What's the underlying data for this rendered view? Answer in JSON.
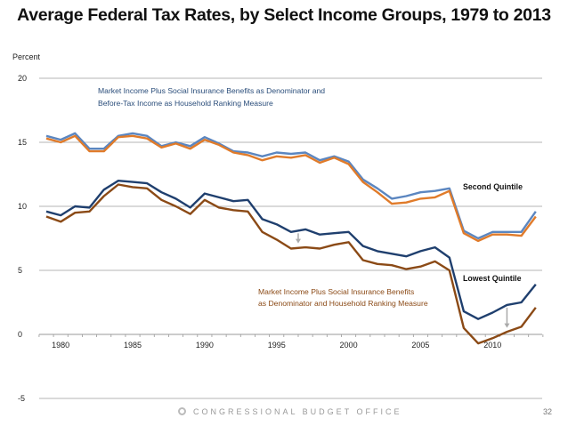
{
  "chart_data": {
    "type": "line",
    "title": "Average Federal Tax Rates, by Select Income Groups, 1979 to 2013",
    "ylabel": "Percent",
    "xlabel": "",
    "ylim": [
      -5,
      20
    ],
    "xlim": [
      1979,
      2013
    ],
    "yticks": [
      -5,
      0,
      5,
      10,
      15,
      20
    ],
    "xticks": [
      1980,
      1985,
      1990,
      1995,
      2000,
      2005,
      2010
    ],
    "grid": true,
    "x": [
      1979,
      1980,
      1981,
      1982,
      1983,
      1984,
      1985,
      1986,
      1987,
      1988,
      1989,
      1990,
      1991,
      1992,
      1993,
      1994,
      1995,
      1996,
      1997,
      1998,
      1999,
      2000,
      2001,
      2002,
      2003,
      2004,
      2005,
      2006,
      2007,
      2008,
      2009,
      2010,
      2011,
      2012,
      2013
    ],
    "series": [
      {
        "name": "Second Quintile - Market Income Plus Social Insurance Benefits as Denominator and Before-Tax Income as Household Ranking Measure",
        "color": "#5b86c0",
        "values": [
          15.5,
          15.2,
          15.7,
          14.5,
          14.5,
          15.5,
          15.7,
          15.5,
          14.7,
          15.0,
          14.7,
          15.4,
          14.9,
          14.3,
          14.2,
          13.9,
          14.2,
          14.1,
          14.2,
          13.6,
          13.9,
          13.5,
          12.1,
          11.4,
          10.6,
          10.8,
          11.1,
          11.2,
          11.4,
          8.1,
          7.5,
          8.0,
          8.0,
          8.0,
          9.6
        ]
      },
      {
        "name": "Second Quintile - Market Income Plus Social Insurance Benefits as Denominator and Household Ranking Measure",
        "color": "#e07b2a",
        "values": [
          15.3,
          15.0,
          15.5,
          14.3,
          14.3,
          15.4,
          15.5,
          15.3,
          14.6,
          14.9,
          14.5,
          15.2,
          14.8,
          14.2,
          14.0,
          13.6,
          13.9,
          13.8,
          14.0,
          13.4,
          13.8,
          13.3,
          11.9,
          11.1,
          10.2,
          10.3,
          10.6,
          10.7,
          11.2,
          7.9,
          7.3,
          7.8,
          7.8,
          7.7,
          9.2
        ]
      },
      {
        "name": "Lowest Quintile - Market Income Plus Social Insurance Benefits as Denominator and Before-Tax Income as Household Ranking Measure",
        "color": "#1f3f6e",
        "values": [
          9.6,
          9.3,
          10.0,
          9.9,
          11.3,
          12.0,
          11.9,
          11.8,
          11.1,
          10.6,
          9.9,
          11.0,
          10.7,
          10.4,
          10.5,
          9.0,
          8.6,
          8.0,
          8.2,
          7.8,
          7.9,
          8.0,
          6.9,
          6.5,
          6.3,
          6.1,
          6.5,
          6.8,
          6.0,
          1.8,
          1.2,
          1.7,
          2.3,
          2.5,
          3.9
        ]
      },
      {
        "name": "Lowest Quintile - Market Income Plus Social Insurance Benefits as Denominator and Household Ranking Measure",
        "color": "#8b4a16",
        "values": [
          9.2,
          8.8,
          9.5,
          9.6,
          10.8,
          11.7,
          11.5,
          11.4,
          10.5,
          10.0,
          9.4,
          10.5,
          9.9,
          9.7,
          9.6,
          8.0,
          7.4,
          6.7,
          6.8,
          6.7,
          7.0,
          7.2,
          5.8,
          5.5,
          5.4,
          5.1,
          5.3,
          5.7,
          5.0,
          0.5,
          -0.7,
          -0.3,
          0.2,
          0.6,
          2.1
        ]
      }
    ],
    "annotations": {
      "top_note_line1": "Market Income Plus Social Insurance Benefits as Denominator and",
      "top_note_line2": "Before-Tax Income as Household Ranking Measure",
      "bottom_note_line1": "Market Income Plus Social Insurance Benefits",
      "bottom_note_line2": "as Denominator and Household Ranking Measure",
      "second_quintile_label": "Second Quintile",
      "lowest_quintile_label": "Lowest Quintile",
      "arrows": [
        {
          "x": 1996.5,
          "from": 8.1,
          "to": 6.9
        },
        {
          "x": 2011,
          "from": 2.3,
          "to": 0.3
        }
      ]
    }
  },
  "footer": {
    "org": "CONGRESSIONAL BUDGET OFFICE",
    "page_number": "32"
  }
}
